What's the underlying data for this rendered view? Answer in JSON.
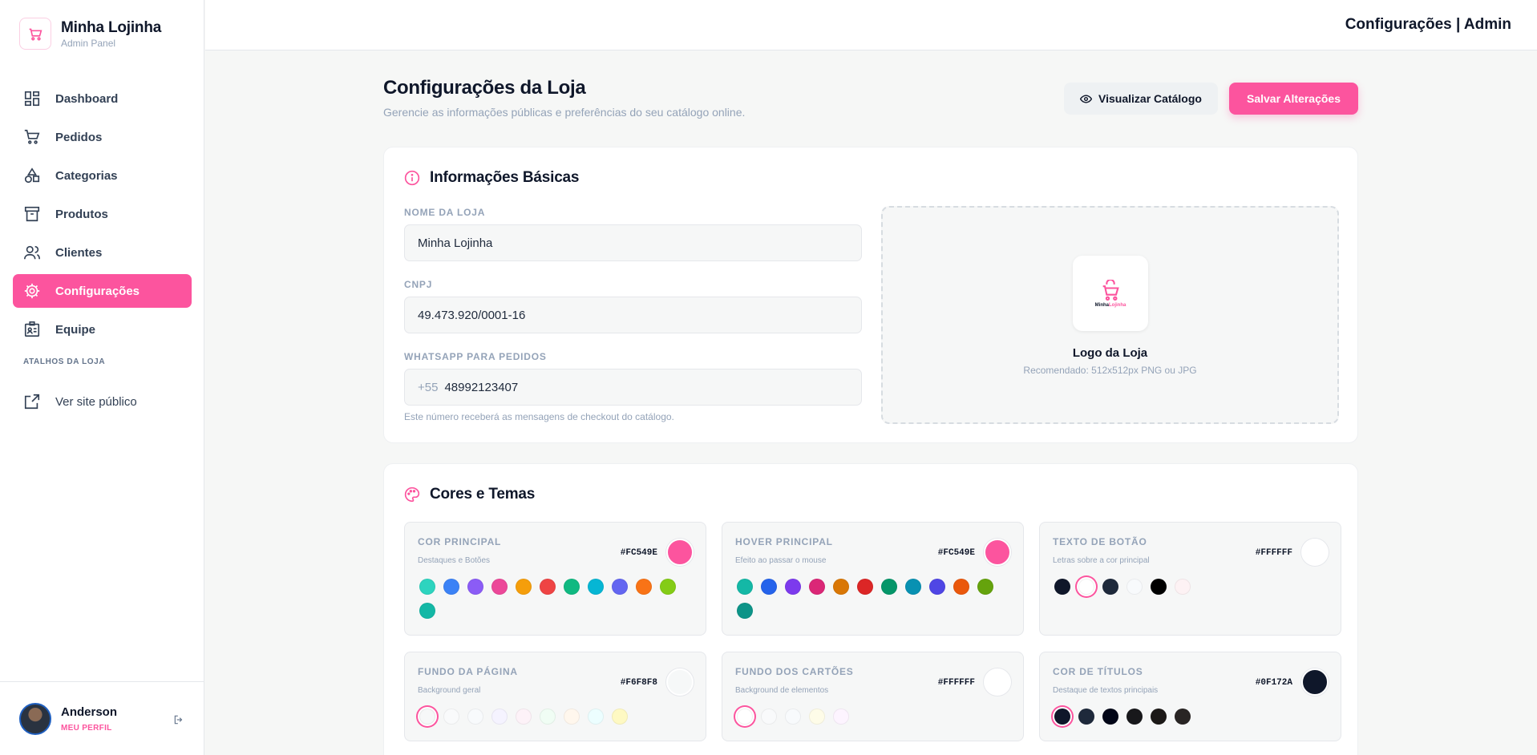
{
  "brand": {
    "name": "Minha Lojinha",
    "subtitle": "Admin Panel"
  },
  "nav": {
    "items": [
      {
        "label": "Dashboard",
        "icon": "dashboard-icon",
        "active": false
      },
      {
        "label": "Pedidos",
        "icon": "cart-icon",
        "active": false
      },
      {
        "label": "Categorias",
        "icon": "shapes-icon",
        "active": false
      },
      {
        "label": "Produtos",
        "icon": "archive-icon",
        "active": false
      },
      {
        "label": "Clientes",
        "icon": "users-icon",
        "active": false
      },
      {
        "label": "Configurações",
        "icon": "gear-icon",
        "active": true
      },
      {
        "label": "Equipe",
        "icon": "id-card-icon",
        "active": false
      }
    ],
    "section_label": "ATALHOS DA LOJA",
    "external_link": "Ver site público"
  },
  "profile": {
    "name": "Anderson",
    "link": "MEU PERFIL"
  },
  "topbar": {
    "title": "Configurações | Admin"
  },
  "page": {
    "title": "Configurações da Loja",
    "subtitle": "Gerencie as informações públicas e preferências do seu catálogo online.",
    "view_button": "Visualizar Catálogo",
    "save_button": "Salvar Alterações"
  },
  "basic": {
    "title": "Informações Básicas",
    "store_name": {
      "label": "NOME DA LOJA",
      "value": "Minha Lojinha"
    },
    "cnpj": {
      "label": "CNPJ",
      "value": "49.473.920/0001-16"
    },
    "whatsapp": {
      "label": "WHATSAPP PARA PEDIDOS",
      "prefix": "+55",
      "value": "48992123407",
      "help": "Este número receberá as mensagens de checkout do catálogo."
    },
    "logo": {
      "title": "Logo da Loja",
      "hint": "Recomendado: 512x512px PNG ou JPG",
      "mini_a": "Minha",
      "mini_b": "Lojinha"
    }
  },
  "colors": {
    "title": "Cores e Temas",
    "cards": [
      {
        "label": "COR PRINCIPAL",
        "desc": "Destaques e Botões",
        "hex": "#FC549E",
        "color": "#fc549e",
        "presets": [
          "#2dd4bf",
          "#3b82f6",
          "#8b5cf6",
          "#ec4899",
          "#f59e0b",
          "#ef4444",
          "#10b981",
          "#06b6d4",
          "#6366f1",
          "#f97316",
          "#84cc16",
          "#14b8a6"
        ],
        "selected": -1
      },
      {
        "label": "HOVER PRINCIPAL",
        "desc": "Efeito ao passar o mouse",
        "hex": "#FC549E",
        "color": "#fc549e",
        "presets": [
          "#14b8a6",
          "#2563eb",
          "#7c3aed",
          "#db2777",
          "#d97706",
          "#dc2626",
          "#059669",
          "#0891b2",
          "#4f46e5",
          "#ea580c",
          "#65a30d",
          "#0d9488"
        ],
        "selected": -1
      },
      {
        "label": "TEXTO DE BOTÃO",
        "desc": "Letras sobre a cor principal",
        "hex": "#FFFFFF",
        "color": "#ffffff",
        "presets": [
          "#0f172a",
          "#ffffff",
          "#1e293b",
          "#f8fafc",
          "#000000",
          "#fdf2f4"
        ],
        "selected": 1
      },
      {
        "label": "FUNDO DA PÁGINA",
        "desc": "Background geral",
        "hex": "#F6F8F8",
        "color": "#f6f8f8",
        "presets": [
          "#f6f8f8",
          "#f9fafb",
          "#f8fafc",
          "#f5f3ff",
          "#fdf2f8",
          "#f0fdf4",
          "#fff7ed",
          "#ecfeff",
          "#fef9c3"
        ],
        "selected": 0
      },
      {
        "label": "FUNDO DOS CARTÕES",
        "desc": "Background de elementos",
        "hex": "#FFFFFF",
        "color": "#ffffff",
        "presets": [
          "#ffffff",
          "#f9fafb",
          "#f8fafc",
          "#fefce8",
          "#fdf4ff"
        ],
        "selected": 0
      },
      {
        "label": "COR DE TÍTULOS",
        "desc": "Destaque de textos principais",
        "hex": "#0F172A",
        "color": "#0f172a",
        "presets": [
          "#0f172a",
          "#1e293b",
          "#020617",
          "#18181b",
          "#1c1917",
          "#292524"
        ],
        "selected": 0
      }
    ]
  },
  "accent": "#fc549e"
}
